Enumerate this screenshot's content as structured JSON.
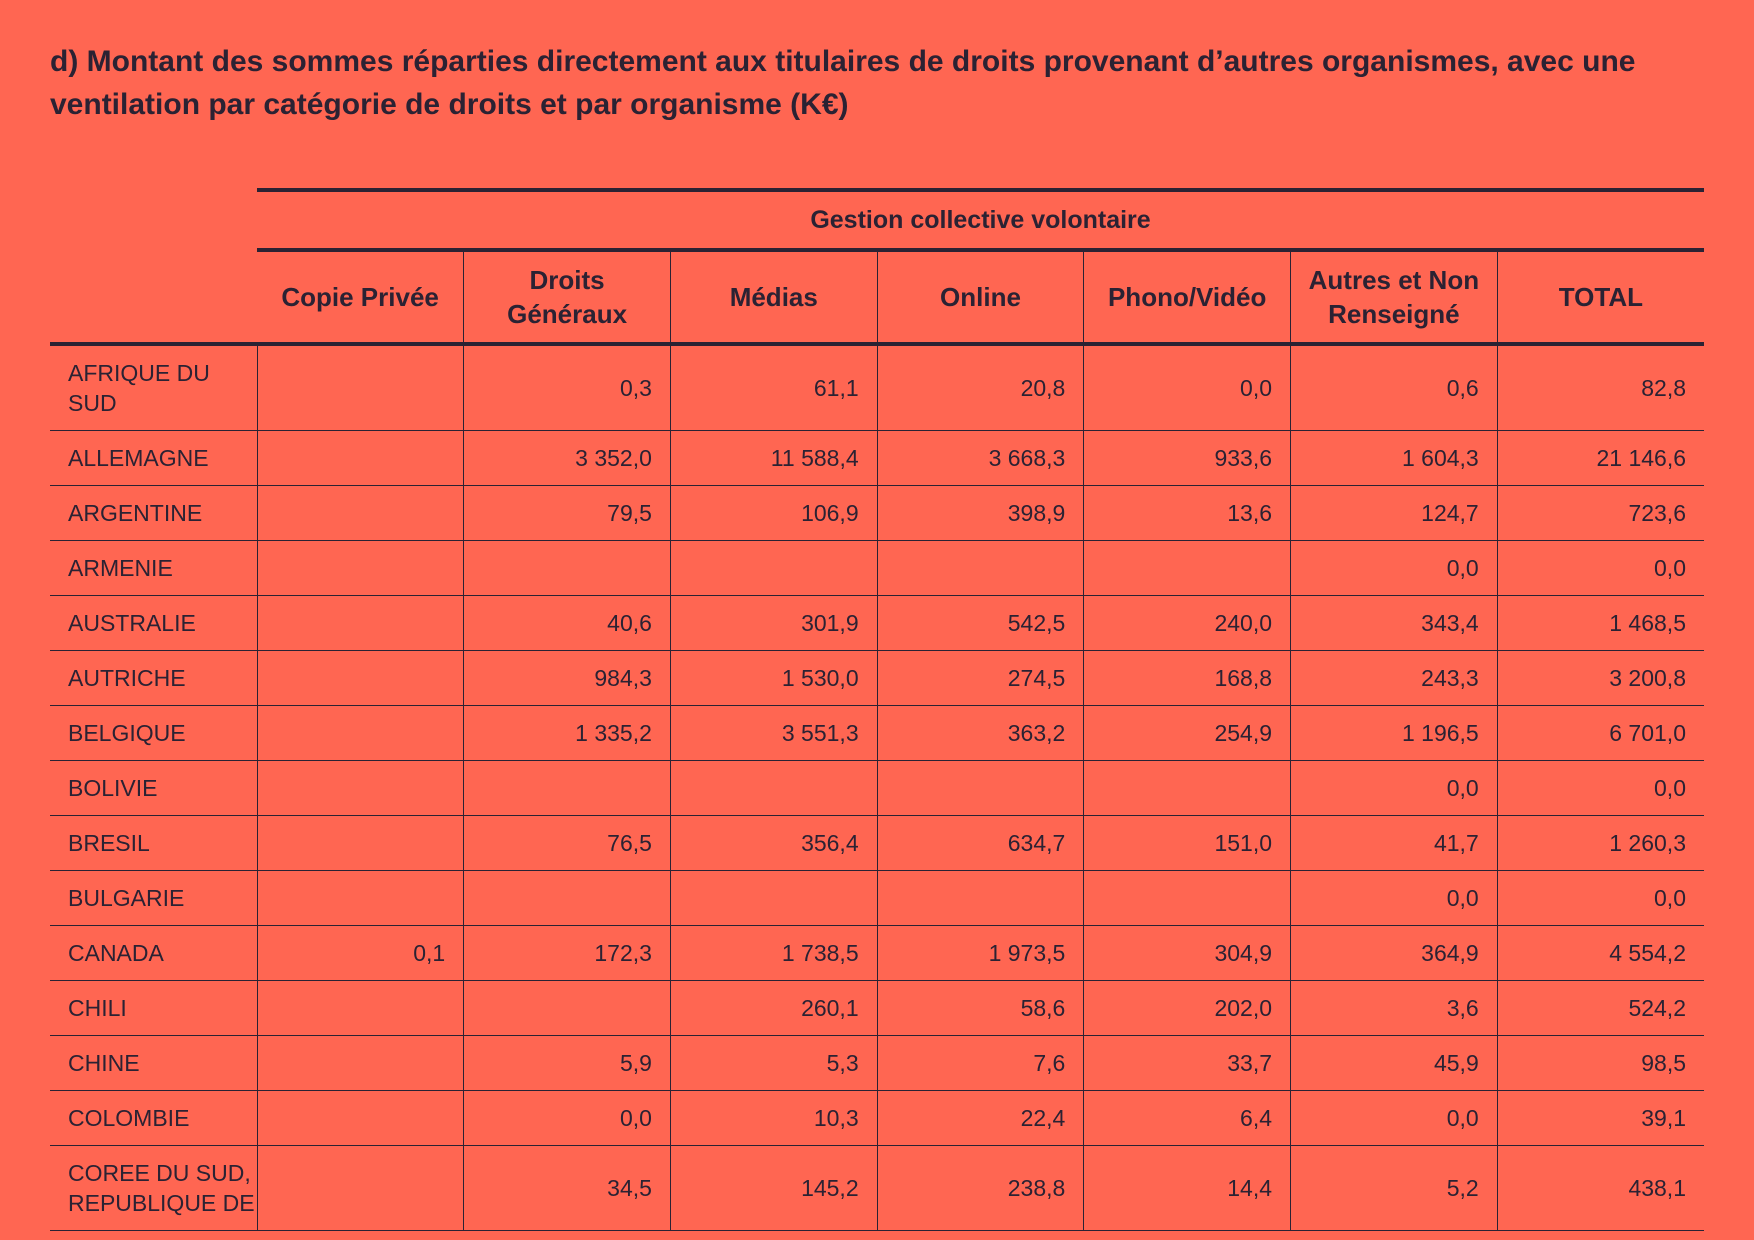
{
  "title": "d) Montant des sommes réparties directement aux titulaires de droits provenant d’autres organismes, avec une ventilation par catégorie de droits et par organisme (K€)",
  "table": {
    "group_header": "Gestion collective volontaire",
    "columns": [
      "Copie Privée",
      "Droits Généraux",
      "Médias",
      "Online",
      "Phono/Vidéo",
      "Autres et Non Renseigné",
      "TOTAL"
    ],
    "rows": [
      {
        "country": "AFRIQUE DU SUD",
        "values": [
          "",
          "0,3",
          "61,1",
          "20,8",
          "0,0",
          "0,6",
          "82,8"
        ]
      },
      {
        "country": "ALLEMAGNE",
        "values": [
          "",
          "3 352,0",
          "11 588,4",
          "3 668,3",
          "933,6",
          "1 604,3",
          "21 146,6"
        ]
      },
      {
        "country": "ARGENTINE",
        "values": [
          "",
          "79,5",
          "106,9",
          "398,9",
          "13,6",
          "124,7",
          "723,6"
        ]
      },
      {
        "country": "ARMENIE",
        "values": [
          "",
          "",
          "",
          "",
          "",
          "0,0",
          "0,0"
        ]
      },
      {
        "country": "AUSTRALIE",
        "values": [
          "",
          "40,6",
          "301,9",
          "542,5",
          "240,0",
          "343,4",
          "1 468,5"
        ]
      },
      {
        "country": "AUTRICHE",
        "values": [
          "",
          "984,3",
          "1 530,0",
          "274,5",
          "168,8",
          "243,3",
          "3 200,8"
        ]
      },
      {
        "country": "BELGIQUE",
        "values": [
          "",
          "1 335,2",
          "3 551,3",
          "363,2",
          "254,9",
          "1 196,5",
          "6 701,0"
        ]
      },
      {
        "country": "BOLIVIE",
        "values": [
          "",
          "",
          "",
          "",
          "",
          "0,0",
          "0,0"
        ]
      },
      {
        "country": "BRESIL",
        "values": [
          "",
          "76,5",
          "356,4",
          "634,7",
          "151,0",
          "41,7",
          "1 260,3"
        ]
      },
      {
        "country": "BULGARIE",
        "values": [
          "",
          "",
          "",
          "",
          "",
          "0,0",
          "0,0"
        ]
      },
      {
        "country": "CANADA",
        "values": [
          "0,1",
          "172,3",
          "1 738,5",
          "1 973,5",
          "304,9",
          "364,9",
          "4 554,2"
        ]
      },
      {
        "country": "CHILI",
        "values": [
          "",
          "",
          "260,1",
          "58,6",
          "202,0",
          "3,6",
          "524,2"
        ]
      },
      {
        "country": "CHINE",
        "values": [
          "",
          "5,9",
          "5,3",
          "7,6",
          "33,7",
          "45,9",
          "98,5"
        ]
      },
      {
        "country": "COLOMBIE",
        "values": [
          "",
          "0,0",
          "10,3",
          "22,4",
          "6,4",
          "0,0",
          "39,1"
        ]
      },
      {
        "country": "COREE DU SUD, REPUBLIQUE DE",
        "values": [
          "",
          "34,5",
          "145,2",
          "238,8",
          "14,4",
          "5,2",
          "438,1"
        ]
      }
    ]
  }
}
